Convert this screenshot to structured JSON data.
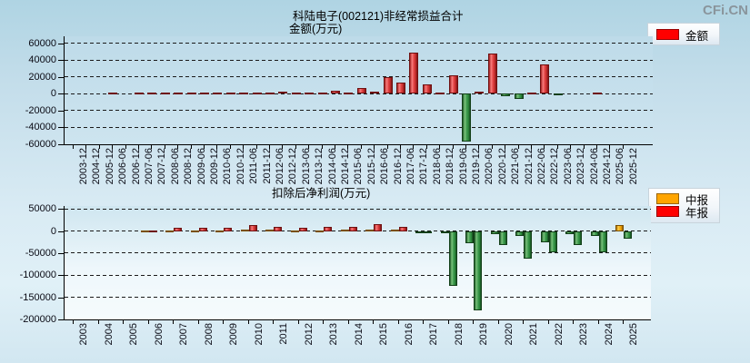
{
  "page": {
    "watermark": "CFi.CN"
  },
  "colors": {
    "amount_positive": "#ff0000",
    "interim_positive": "#ffa500",
    "annual_positive": "#ff0000",
    "negative": "#2f8f3f",
    "background": "#c6e0ec"
  },
  "chart_data": [
    {
      "type": "bar",
      "title": "科陆电子(002121)非经常损益合计",
      "subtitle": "金额(万元)",
      "unit": "万元",
      "legend": [
        {
          "label": "金额",
          "color": "#ff0000"
        }
      ],
      "grid": true,
      "legend_position": "top-right",
      "ylim": [
        -60000,
        68600
      ],
      "yticks": [
        60000,
        40000,
        20000,
        0,
        -20000,
        -40000,
        -60000
      ],
      "categories": [
        "2003-12",
        "2004-12",
        "2005-12",
        "2006-06",
        "2006-12",
        "2007-06",
        "2007-12",
        "2008-06",
        "2008-12",
        "2009-06",
        "2009-12",
        "2010-06",
        "2010-12",
        "2011-06",
        "2011-12",
        "2012-06",
        "2012-12",
        "2013-06",
        "2013-12",
        "2014-06",
        "2014-12",
        "2015-06",
        "2015-12",
        "2016-06",
        "2016-12",
        "2017-06",
        "2017-12",
        "2018-06",
        "2018-12",
        "2019-06",
        "2019-12",
        "2020-06",
        "2020-12",
        "2021-06",
        "2021-12",
        "2022-06",
        "2022-12",
        "2023-06",
        "2023-12",
        "2024-06",
        "2024-12",
        "2025-06",
        "2025-12"
      ],
      "values": [
        null,
        null,
        null,
        800,
        null,
        800,
        1000,
        800,
        1000,
        800,
        1200,
        800,
        1200,
        1000,
        1500,
        1000,
        2800,
        1000,
        1500,
        1000,
        3500,
        1500,
        7000,
        2500,
        20500,
        13500,
        49000,
        11500,
        2000,
        22500,
        -57000,
        3000,
        48000,
        -3000,
        -6000,
        1500,
        35000,
        -1800,
        null,
        null,
        2000,
        null,
        null
      ]
    },
    {
      "type": "bar",
      "title": "扣除后净利润(万元)",
      "unit": "万元",
      "legend": [
        {
          "label": "中报",
          "color": "#ffa500"
        },
        {
          "label": "年报",
          "color": "#ff0000"
        }
      ],
      "grid": true,
      "legend_position": "top-right",
      "ylim": [
        -200000,
        56800
      ],
      "yticks": [
        50000,
        0,
        -50000,
        -100000,
        -150000,
        -200000
      ],
      "categories": [
        "2003",
        "2004",
        "2005",
        "2006",
        "2007",
        "2008",
        "2009",
        "2010",
        "2011",
        "2012",
        "2013",
        "2014",
        "2015",
        "2016",
        "2017",
        "2018",
        "2019",
        "2020",
        "2021",
        "2022",
        "2023",
        "2024",
        "2025"
      ],
      "series": [
        {
          "name": "中报",
          "values": [
            null,
            null,
            null,
            1200,
            1800,
            1800,
            2000,
            2500,
            2500,
            2000,
            2200,
            2500,
            2800,
            2500,
            -1500,
            -3000,
            -28000,
            -7500,
            -11000,
            -24500,
            -7500,
            -11000,
            14000
          ]
        },
        {
          "name": "年报",
          "values": [
            null,
            null,
            null,
            1500,
            7000,
            6500,
            8000,
            13500,
            9500,
            8000,
            9000,
            9500,
            15500,
            9500,
            -2500,
            -124000,
            -180000,
            -31000,
            -62000,
            -47000,
            -31000,
            -47000,
            -17500
          ]
        }
      ]
    }
  ]
}
